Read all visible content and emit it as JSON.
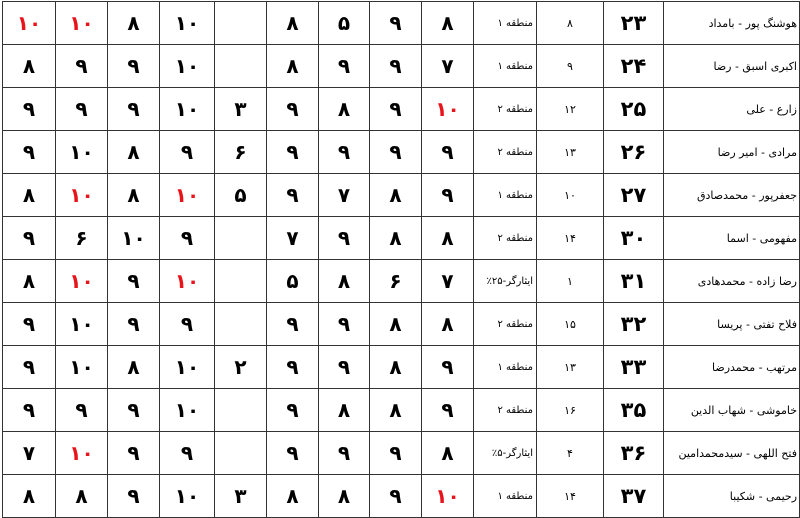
{
  "highlight_color": "#e8141b",
  "rows": [
    {
      "name": "هوشنگ پور - بامداد",
      "code": "۲۳",
      "rank": "۸",
      "region": "منطقه ۱",
      "scores": [
        {
          "v": "۸"
        },
        {
          "v": "۹"
        },
        {
          "v": "۵"
        },
        {
          "v": "۸"
        },
        {
          "v": ""
        },
        {
          "v": "۱۰"
        },
        {
          "v": "۸"
        },
        {
          "v": "۱۰",
          "red": true
        },
        {
          "v": "۱۰",
          "red": true
        }
      ]
    },
    {
      "name": "اکبری اسبق - رضا",
      "code": "۲۴",
      "rank": "۹",
      "region": "منطقه ۱",
      "scores": [
        {
          "v": "۷"
        },
        {
          "v": "۹"
        },
        {
          "v": "۹"
        },
        {
          "v": "۸"
        },
        {
          "v": ""
        },
        {
          "v": "۱۰"
        },
        {
          "v": "۹"
        },
        {
          "v": "۹"
        },
        {
          "v": "۸"
        }
      ]
    },
    {
      "name": "زارع - علی",
      "code": "۲۵",
      "rank": "۱۲",
      "region": "منطقه ۲",
      "scores": [
        {
          "v": "۱۰",
          "red": true
        },
        {
          "v": "۹"
        },
        {
          "v": "۸"
        },
        {
          "v": "۹"
        },
        {
          "v": "۳"
        },
        {
          "v": "۱۰"
        },
        {
          "v": "۹"
        },
        {
          "v": "۹"
        },
        {
          "v": "۹"
        }
      ]
    },
    {
      "name": "مرادی - امیر رضا",
      "code": "۲۶",
      "rank": "۱۳",
      "region": "منطقه ۲",
      "scores": [
        {
          "v": "۹"
        },
        {
          "v": "۹"
        },
        {
          "v": "۹"
        },
        {
          "v": "۹"
        },
        {
          "v": "۶"
        },
        {
          "v": "۹"
        },
        {
          "v": "۸"
        },
        {
          "v": "۱۰"
        },
        {
          "v": "۹"
        }
      ]
    },
    {
      "name": "جعفرپور - محمدصادق",
      "code": "۲۷",
      "rank": "۱۰",
      "region": "منطقه ۱",
      "scores": [
        {
          "v": "۹"
        },
        {
          "v": "۸"
        },
        {
          "v": "۷"
        },
        {
          "v": "۹"
        },
        {
          "v": "۵"
        },
        {
          "v": "۱۰",
          "red": true
        },
        {
          "v": "۸"
        },
        {
          "v": "۱۰",
          "red": true
        },
        {
          "v": "۸"
        }
      ]
    },
    {
      "name": "مفهومی - اسما",
      "code": "۳۰",
      "rank": "۱۴",
      "region": "منطقه ۲",
      "scores": [
        {
          "v": "۸"
        },
        {
          "v": "۸"
        },
        {
          "v": "۹"
        },
        {
          "v": "۷"
        },
        {
          "v": ""
        },
        {
          "v": "۹"
        },
        {
          "v": "۱۰"
        },
        {
          "v": "۶"
        },
        {
          "v": "۹"
        }
      ]
    },
    {
      "name": "رضا زاده - محمدهادی",
      "code": "۳۱",
      "rank": "۱",
      "region": "ایثارگر-۲۵٪",
      "scores": [
        {
          "v": "۷"
        },
        {
          "v": "۶"
        },
        {
          "v": "۸"
        },
        {
          "v": "۵"
        },
        {
          "v": ""
        },
        {
          "v": "۱۰",
          "red": true
        },
        {
          "v": "۹"
        },
        {
          "v": "۱۰",
          "red": true
        },
        {
          "v": "۸"
        }
      ]
    },
    {
      "name": "فلاح تفتی - پریسا",
      "code": "۳۲",
      "rank": "۱۵",
      "region": "منطقه ۲",
      "scores": [
        {
          "v": "۸"
        },
        {
          "v": "۸"
        },
        {
          "v": "۹"
        },
        {
          "v": "۹"
        },
        {
          "v": ""
        },
        {
          "v": "۹"
        },
        {
          "v": "۹"
        },
        {
          "v": "۱۰"
        },
        {
          "v": "۹"
        }
      ]
    },
    {
      "name": "مرتهب - محمدرضا",
      "code": "۳۳",
      "rank": "۱۳",
      "region": "منطقه ۱",
      "scores": [
        {
          "v": "۹"
        },
        {
          "v": "۸"
        },
        {
          "v": "۹"
        },
        {
          "v": "۹"
        },
        {
          "v": "۲"
        },
        {
          "v": "۱۰"
        },
        {
          "v": "۸"
        },
        {
          "v": "۱۰"
        },
        {
          "v": "۹"
        }
      ]
    },
    {
      "name": "خاموشی - شهاب الدین",
      "code": "۳۵",
      "rank": "۱۶",
      "region": "منطقه ۲",
      "scores": [
        {
          "v": "۹"
        },
        {
          "v": "۸"
        },
        {
          "v": "۸"
        },
        {
          "v": "۹"
        },
        {
          "v": ""
        },
        {
          "v": "۱۰"
        },
        {
          "v": "۹"
        },
        {
          "v": "۹"
        },
        {
          "v": "۹"
        }
      ]
    },
    {
      "name": "فتح اللهی - سیدمحمدامین",
      "code": "۳۶",
      "rank": "۴",
      "region": "ایثارگر-۵٪",
      "scores": [
        {
          "v": "۸"
        },
        {
          "v": "۹"
        },
        {
          "v": "۹"
        },
        {
          "v": "۹"
        },
        {
          "v": ""
        },
        {
          "v": "۹"
        },
        {
          "v": "۹"
        },
        {
          "v": "۱۰",
          "red": true
        },
        {
          "v": "۷"
        }
      ]
    },
    {
      "name": "رحیمی - شکیبا",
      "code": "۳۷",
      "rank": "۱۴",
      "region": "منطقه ۱",
      "scores": [
        {
          "v": "۱۰",
          "red": true
        },
        {
          "v": "۹"
        },
        {
          "v": "۸"
        },
        {
          "v": "۸"
        },
        {
          "v": "۳"
        },
        {
          "v": "۱۰"
        },
        {
          "v": "۹"
        },
        {
          "v": "۸"
        },
        {
          "v": "۸"
        }
      ]
    }
  ]
}
